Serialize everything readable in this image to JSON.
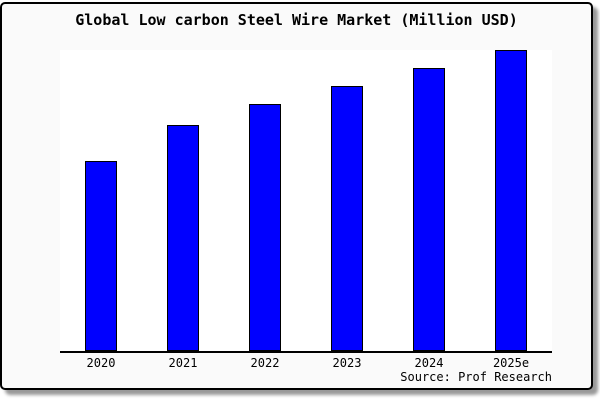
{
  "page": {
    "title": "Global Low carbon Steel Wire Market (Million USD)",
    "source_note": "Source: Prof Research"
  },
  "chart_data": {
    "type": "bar",
    "title": "Global Low carbon Steel Wire Market (Million USD)",
    "categories": [
      "2020",
      "2021",
      "2022",
      "2023",
      "2024",
      "2025e"
    ],
    "values": [
      63,
      75,
      82,
      88,
      94,
      100
    ],
    "value_note": "relative bar heights, tallest bar (2025e) = 100; chart shows no y-axis, no tick values, no gridlines",
    "xlabel": "",
    "ylabel": "",
    "ylim": [
      0,
      100
    ],
    "grid": false,
    "legend": false,
    "source_note": "Source: Prof Research",
    "colors": {
      "bar_fill": "#0000ff",
      "bar_border": "#000000",
      "axis": "#000000",
      "plot_background": "#ffffff",
      "card_background": "#fafafa",
      "card_border": "#000000",
      "shadow": "#999999",
      "text": "#000000"
    }
  }
}
